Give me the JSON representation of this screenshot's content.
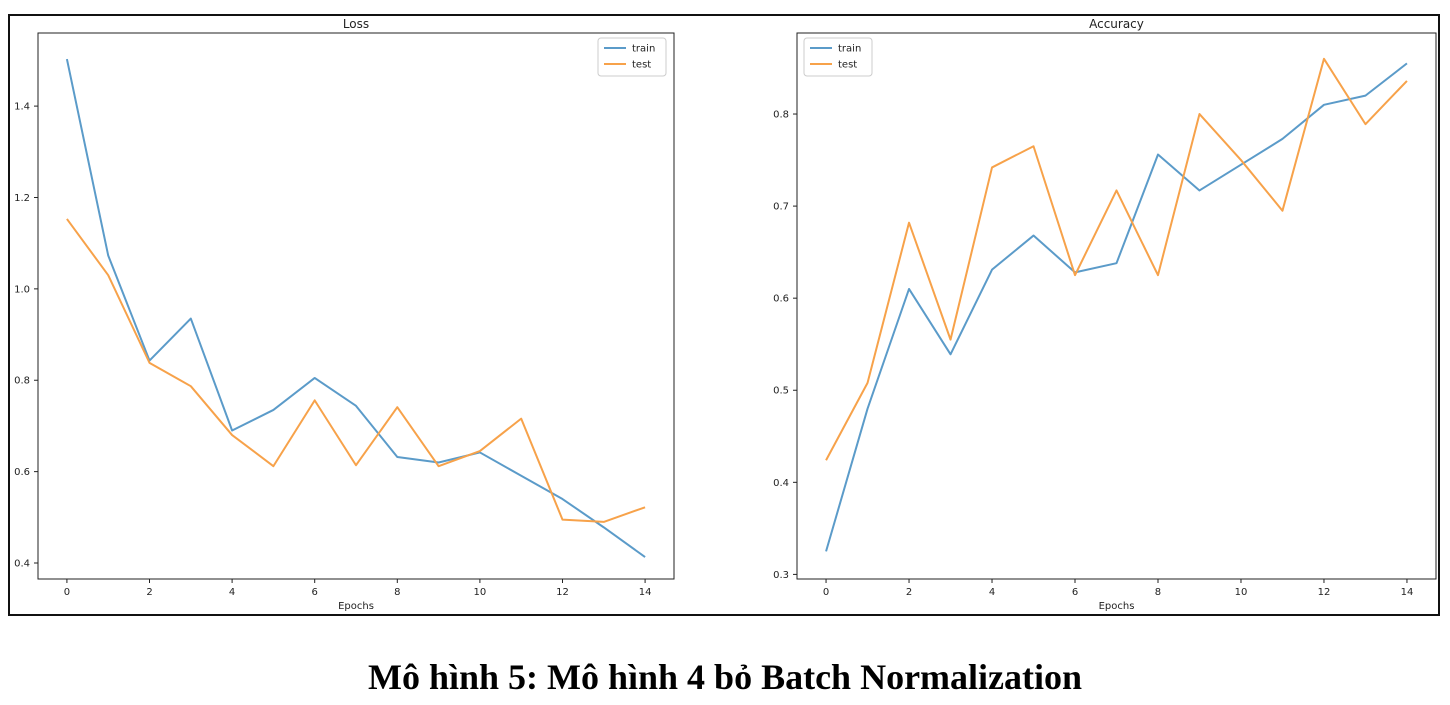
{
  "caption": "Mô hình 5: Mô hình 4 bỏ Batch Normalization",
  "colors": {
    "train": "#5b9bc9",
    "test": "#f7a24a"
  },
  "chart_data": [
    {
      "type": "line",
      "title": "Loss",
      "xlabel": "Epochs",
      "ylabel": "",
      "x": [
        0,
        1,
        2,
        3,
        4,
        5,
        6,
        7,
        8,
        9,
        10,
        11,
        12,
        13,
        14
      ],
      "xlim": [
        -0.7,
        14.7
      ],
      "ylim": [
        0.365,
        1.56
      ],
      "xticks": [
        0,
        2,
        4,
        6,
        8,
        10,
        12,
        14
      ],
      "yticks": [
        0.4,
        0.6,
        0.8,
        1.0,
        1.2,
        1.4
      ],
      "ytick_labels": [
        "0.4",
        "0.6",
        "0.8",
        "1.0",
        "1.2",
        "1.4"
      ],
      "legend_position": "top-right",
      "series": [
        {
          "name": "train",
          "values": [
            1.503,
            1.073,
            0.843,
            0.935,
            0.69,
            0.735,
            0.805,
            0.744,
            0.632,
            0.62,
            0.642,
            0.591,
            0.54,
            0.478,
            0.413
          ]
        },
        {
          "name": "test",
          "values": [
            1.153,
            1.03,
            0.838,
            0.787,
            0.68,
            0.612,
            0.756,
            0.614,
            0.741,
            0.612,
            0.645,
            0.716,
            0.495,
            0.49,
            0.522
          ]
        }
      ]
    },
    {
      "type": "line",
      "title": "Accuracy",
      "xlabel": "Epochs",
      "ylabel": "",
      "x": [
        0,
        1,
        2,
        3,
        4,
        5,
        6,
        7,
        8,
        9,
        10,
        11,
        12,
        13,
        14
      ],
      "xlim": [
        -0.7,
        14.7
      ],
      "ylim": [
        0.295,
        0.888
      ],
      "xticks": [
        0,
        2,
        4,
        6,
        8,
        10,
        12,
        14
      ],
      "yticks": [
        0.3,
        0.4,
        0.5,
        0.6,
        0.7,
        0.8
      ],
      "ytick_labels": [
        "0.3",
        "0.4",
        "0.5",
        "0.6",
        "0.7",
        "0.8"
      ],
      "legend_position": "top-left",
      "series": [
        {
          "name": "train",
          "values": [
            0.325,
            0.48,
            0.61,
            0.539,
            0.631,
            0.668,
            0.628,
            0.638,
            0.756,
            0.717,
            0.745,
            0.773,
            0.81,
            0.82,
            0.855
          ]
        },
        {
          "name": "test",
          "values": [
            0.424,
            0.508,
            0.682,
            0.555,
            0.742,
            0.765,
            0.625,
            0.717,
            0.625,
            0.8,
            0.75,
            0.695,
            0.86,
            0.789,
            0.836
          ]
        }
      ]
    }
  ]
}
